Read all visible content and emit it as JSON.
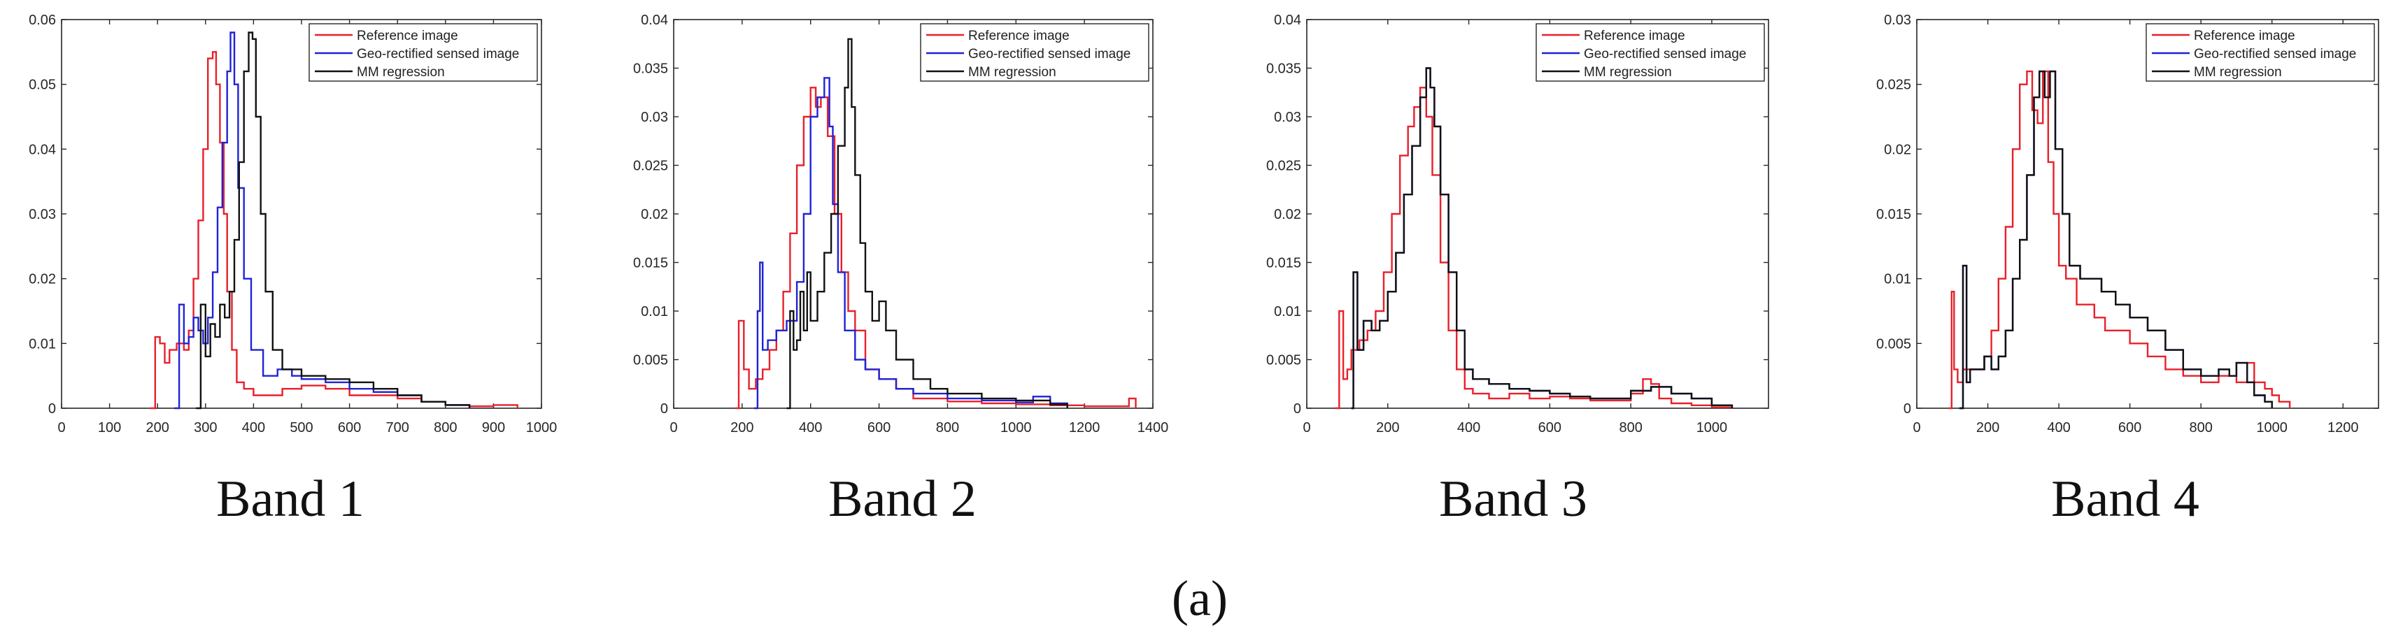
{
  "figure_caption": "(a)",
  "legend_labels": [
    "Reference image",
    "Geo-rectified sensed image",
    "MM regression"
  ],
  "colors": {
    "reference": "#e8202a",
    "sensed": "#1f23d6",
    "mm": "#111111",
    "axis": "#262626"
  },
  "chart_data": [
    {
      "type": "line",
      "title": "Band 1",
      "xlim": [
        0,
        1000
      ],
      "ylim": [
        0,
        0.06
      ],
      "xticks": [
        0,
        100,
        200,
        300,
        400,
        500,
        600,
        700,
        800,
        900,
        1000
      ],
      "xtick_labels": [
        "0",
        "100",
        "200",
        "300",
        "400",
        "500",
        "600",
        "700",
        "800",
        "900",
        "1000"
      ],
      "yticks": [
        0,
        0.01,
        0.02,
        0.03,
        0.04,
        0.05,
        0.06
      ],
      "ytick_labels": [
        "0",
        "0.01",
        "0.02",
        "0.03",
        "0.04",
        "0.05",
        "0.06"
      ],
      "legend": "top-right",
      "series": [
        {
          "name": "Reference image",
          "color": "#e8202a",
          "x": [
            185,
            195,
            205,
            215,
            225,
            240,
            255,
            265,
            275,
            285,
            295,
            305,
            315,
            322,
            330,
            338,
            345,
            355,
            365,
            380,
            400,
            430,
            460,
            500,
            550,
            600,
            650,
            700,
            750,
            800,
            850,
            900,
            950
          ],
          "y": [
            0,
            0.011,
            0.01,
            0.007,
            0.009,
            0.01,
            0.009,
            0.012,
            0.02,
            0.029,
            0.04,
            0.054,
            0.055,
            0.05,
            0.041,
            0.03,
            0.018,
            0.009,
            0.004,
            0.003,
            0.002,
            0.002,
            0.003,
            0.0035,
            0.003,
            0.002,
            0.002,
            0.0015,
            0.001,
            0.0005,
            0.0003,
            0.0005,
            0
          ]
        },
        {
          "name": "Geo-rectified sensed image",
          "color": "#1f23d6",
          "x": [
            235,
            245,
            255,
            265,
            275,
            285,
            295,
            305,
            315,
            325,
            335,
            345,
            352,
            360,
            368,
            380,
            395,
            420,
            450,
            480,
            500,
            550,
            600,
            650,
            700,
            750,
            800,
            850
          ],
          "y": [
            0,
            0.016,
            0.01,
            0.011,
            0.014,
            0.012,
            0.01,
            0.014,
            0.021,
            0.031,
            0.041,
            0.052,
            0.058,
            0.05,
            0.034,
            0.02,
            0.009,
            0.005,
            0.006,
            0.005,
            0.0045,
            0.004,
            0.003,
            0.0025,
            0.002,
            0.001,
            0.0005,
            0
          ]
        },
        {
          "name": "MM regression",
          "color": "#111111",
          "x": [
            280,
            290,
            300,
            310,
            320,
            330,
            340,
            350,
            360,
            370,
            380,
            390,
            398,
            405,
            415,
            425,
            440,
            460,
            500,
            550,
            600,
            650,
            700,
            750,
            800,
            850
          ],
          "y": [
            0,
            0.016,
            0.008,
            0.013,
            0.011,
            0.016,
            0.014,
            0.018,
            0.026,
            0.038,
            0.052,
            0.058,
            0.057,
            0.045,
            0.03,
            0.018,
            0.009,
            0.006,
            0.005,
            0.0045,
            0.004,
            0.003,
            0.002,
            0.001,
            0.0005,
            0
          ]
        }
      ]
    },
    {
      "type": "line",
      "title": "Band 2",
      "xlim": [
        0,
        1400
      ],
      "ylim": [
        0,
        0.04
      ],
      "xticks": [
        0,
        200,
        400,
        600,
        800,
        1000,
        1200,
        1400
      ],
      "xtick_labels": [
        "0",
        "200",
        "400",
        "600",
        "800",
        "1000",
        "1200",
        "1400"
      ],
      "yticks": [
        0,
        0.005,
        0.01,
        0.015,
        0.02,
        0.025,
        0.03,
        0.035,
        0.04
      ],
      "ytick_labels": [
        "0",
        "0.005",
        "0.01",
        "0.015",
        "0.02",
        "0.025",
        "0.03",
        "0.035",
        "0.04"
      ],
      "legend": "top-right",
      "series": [
        {
          "name": "Reference image",
          "color": "#e8202a",
          "x": [
            180,
            190,
            205,
            220,
            240,
            260,
            280,
            300,
            320,
            340,
            360,
            380,
            400,
            415,
            430,
            450,
            470,
            490,
            510,
            530,
            560,
            600,
            650,
            700,
            800,
            900,
            1000,
            1100,
            1200,
            1300,
            1330,
            1350
          ],
          "y": [
            0,
            0.009,
            0.004,
            0.002,
            0.003,
            0.004,
            0.006,
            0.008,
            0.012,
            0.018,
            0.025,
            0.03,
            0.033,
            0.031,
            0.032,
            0.028,
            0.02,
            0.014,
            0.01,
            0.008,
            0.004,
            0.003,
            0.002,
            0.001,
            0.0007,
            0.0005,
            0.0004,
            0.0003,
            0.0002,
            0.0002,
            0.001,
            0
          ]
        },
        {
          "name": "Geo-rectified sensed image",
          "color": "#1f23d6",
          "x": [
            235,
            245,
            252,
            260,
            275,
            300,
            330,
            360,
            380,
            400,
            420,
            440,
            455,
            465,
            480,
            500,
            530,
            560,
            600,
            650,
            700,
            800,
            900,
            1000,
            1050,
            1100,
            1150
          ],
          "y": [
            0,
            0.01,
            0.015,
            0.006,
            0.007,
            0.008,
            0.009,
            0.013,
            0.02,
            0.03,
            0.032,
            0.034,
            0.029,
            0.021,
            0.014,
            0.008,
            0.005,
            0.004,
            0.003,
            0.002,
            0.0015,
            0.001,
            0.0008,
            0.0006,
            0.0012,
            0.0005,
            0
          ]
        },
        {
          "name": "MM regression",
          "color": "#111111",
          "x": [
            330,
            340,
            350,
            360,
            370,
            380,
            390,
            400,
            420,
            440,
            460,
            480,
            500,
            510,
            520,
            530,
            545,
            560,
            580,
            600,
            620,
            650,
            700,
            750,
            800,
            900,
            1000,
            1100,
            1150
          ],
          "y": [
            0,
            0.01,
            0.006,
            0.007,
            0.012,
            0.008,
            0.014,
            0.009,
            0.012,
            0.016,
            0.02,
            0.027,
            0.033,
            0.038,
            0.031,
            0.024,
            0.017,
            0.012,
            0.009,
            0.011,
            0.008,
            0.005,
            0.003,
            0.002,
            0.0015,
            0.001,
            0.0008,
            0.0004,
            0
          ]
        }
      ]
    },
    {
      "type": "line",
      "title": "Band 3",
      "xlim": [
        0,
        1140
      ],
      "ylim": [
        0,
        0.04
      ],
      "xticks": [
        0,
        200,
        400,
        600,
        800,
        1000
      ],
      "xtick_labels": [
        "0",
        "200",
        "400",
        "600",
        "800",
        "1000"
      ],
      "yticks": [
        0,
        0.005,
        0.01,
        0.015,
        0.02,
        0.025,
        0.03,
        0.035,
        0.04
      ],
      "ytick_labels": [
        "0",
        "0.005",
        "0.01",
        "0.015",
        "0.02",
        "0.025",
        "0.03",
        "0.035",
        "0.04"
      ],
      "legend": "top-right",
      "series": [
        {
          "name": "Reference image",
          "color": "#e8202a",
          "x": [
            70,
            80,
            90,
            100,
            110,
            130,
            150,
            170,
            190,
            210,
            230,
            250,
            265,
            280,
            295,
            310,
            330,
            350,
            370,
            390,
            410,
            450,
            500,
            550,
            600,
            650,
            700,
            750,
            800,
            830,
            850,
            870,
            900,
            950,
            1000,
            1050
          ],
          "y": [
            0,
            0.01,
            0.003,
            0.004,
            0.006,
            0.007,
            0.008,
            0.01,
            0.014,
            0.02,
            0.026,
            0.029,
            0.031,
            0.033,
            0.03,
            0.024,
            0.015,
            0.008,
            0.004,
            0.002,
            0.0015,
            0.001,
            0.0015,
            0.001,
            0.0012,
            0.001,
            0.0008,
            0.0008,
            0.0015,
            0.003,
            0.0025,
            0.001,
            0.0005,
            0.0003,
            0.0001,
            0
          ]
        },
        {
          "name": "Geo-rectified sensed image",
          "color": "#1f23d6",
          "x": [
            110,
            115,
            125,
            140,
            160,
            180,
            200,
            220,
            240,
            260,
            280,
            295,
            305,
            315,
            330,
            350,
            370,
            390,
            410,
            450,
            500,
            550,
            600,
            650,
            700,
            750,
            800,
            850,
            900,
            950,
            1000,
            1050
          ],
          "y": [
            0,
            0.014,
            0.006,
            0.009,
            0.008,
            0.009,
            0.012,
            0.016,
            0.022,
            0.027,
            0.032,
            0.035,
            0.033,
            0.029,
            0.022,
            0.014,
            0.008,
            0.004,
            0.003,
            0.0025,
            0.002,
            0.0018,
            0.0015,
            0.0012,
            0.001,
            0.001,
            0.0018,
            0.0022,
            0.0015,
            0.001,
            0.0003,
            0
          ]
        },
        {
          "name": "MM regression",
          "color": "#111111",
          "x": [
            110,
            115,
            125,
            140,
            160,
            180,
            200,
            220,
            240,
            260,
            280,
            295,
            305,
            315,
            330,
            350,
            370,
            390,
            410,
            450,
            500,
            550,
            600,
            650,
            700,
            750,
            800,
            850,
            900,
            950,
            1000,
            1050
          ],
          "y": [
            0,
            0.014,
            0.006,
            0.009,
            0.008,
            0.009,
            0.012,
            0.016,
            0.022,
            0.027,
            0.032,
            0.035,
            0.033,
            0.029,
            0.022,
            0.014,
            0.008,
            0.004,
            0.003,
            0.0025,
            0.002,
            0.0018,
            0.0015,
            0.0012,
            0.001,
            0.001,
            0.0018,
            0.0022,
            0.0015,
            0.001,
            0.0003,
            0
          ]
        }
      ]
    },
    {
      "type": "line",
      "title": "Band 4",
      "xlim": [
        0,
        1300
      ],
      "ylim": [
        0,
        0.03
      ],
      "xticks": [
        0,
        200,
        400,
        600,
        800,
        1000,
        1200
      ],
      "xtick_labels": [
        "0",
        "200",
        "400",
        "600",
        "800",
        "1000",
        "1200"
      ],
      "yticks": [
        0,
        0.005,
        0.01,
        0.015,
        0.02,
        0.025,
        0.03
      ],
      "ytick_labels": [
        "0",
        "0.005",
        "0.01",
        "0.015",
        "0.02",
        "0.025",
        "0.03"
      ],
      "legend": "top-right",
      "series": [
        {
          "name": "Reference image",
          "color": "#e8202a",
          "x": [
            90,
            98,
            105,
            115,
            130,
            150,
            170,
            190,
            210,
            230,
            250,
            270,
            290,
            310,
            325,
            340,
            355,
            370,
            385,
            400,
            420,
            450,
            480,
            500,
            530,
            560,
            600,
            650,
            700,
            750,
            800,
            850,
            900,
            930,
            950,
            980,
            1000,
            1020,
            1050
          ],
          "y": [
            0,
            0.009,
            0.003,
            0.002,
            0.003,
            0.003,
            0.003,
            0.004,
            0.006,
            0.01,
            0.014,
            0.02,
            0.025,
            0.026,
            0.023,
            0.022,
            0.026,
            0.019,
            0.015,
            0.011,
            0.01,
            0.008,
            0.008,
            0.007,
            0.006,
            0.006,
            0.005,
            0.004,
            0.003,
            0.0025,
            0.002,
            0.0025,
            0.002,
            0.0035,
            0.002,
            0.0015,
            0.001,
            0.0005,
            0
          ]
        },
        {
          "name": "Geo-rectified sensed image",
          "color": "#1f23d6",
          "x": [
            120,
            130,
            140,
            150,
            170,
            190,
            210,
            230,
            250,
            270,
            290,
            310,
            330,
            345,
            360,
            375,
            390,
            410,
            430,
            460,
            490,
            520,
            560,
            600,
            650,
            700,
            750,
            800,
            850,
            880,
            900,
            930,
            950,
            980,
            1000
          ],
          "y": [
            0,
            0.011,
            0.002,
            0.003,
            0.003,
            0.004,
            0.003,
            0.004,
            0.006,
            0.01,
            0.013,
            0.018,
            0.024,
            0.026,
            0.024,
            0.026,
            0.02,
            0.015,
            0.011,
            0.01,
            0.01,
            0.009,
            0.008,
            0.007,
            0.006,
            0.0045,
            0.003,
            0.0025,
            0.003,
            0.0025,
            0.0035,
            0.002,
            0.001,
            0.0005,
            0
          ]
        },
        {
          "name": "MM regression",
          "color": "#111111",
          "x": [
            120,
            130,
            140,
            150,
            170,
            190,
            210,
            230,
            250,
            270,
            290,
            310,
            330,
            345,
            360,
            375,
            390,
            410,
            430,
            460,
            490,
            520,
            560,
            600,
            650,
            700,
            750,
            800,
            850,
            880,
            900,
            930,
            950,
            980,
            1000
          ],
          "y": [
            0,
            0.011,
            0.002,
            0.003,
            0.003,
            0.004,
            0.003,
            0.004,
            0.006,
            0.01,
            0.013,
            0.018,
            0.024,
            0.026,
            0.024,
            0.026,
            0.02,
            0.015,
            0.011,
            0.01,
            0.01,
            0.009,
            0.008,
            0.007,
            0.006,
            0.0045,
            0.003,
            0.0025,
            0.003,
            0.0025,
            0.0035,
            0.002,
            0.001,
            0.0005,
            0
          ]
        }
      ]
    }
  ]
}
